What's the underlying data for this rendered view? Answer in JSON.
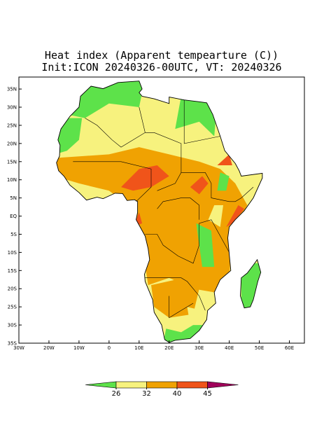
{
  "title": "Heat index (Apparent tempearture (C))",
  "subtitle": "Init:ICON 20240326-00UTC, VT: 20240326",
  "map": {
    "lon_range": [
      -30,
      65
    ],
    "lat_range": [
      -35,
      38.3
    ],
    "lat_ticks": [
      {
        "value": 35,
        "label": "35N"
      },
      {
        "value": 30,
        "label": "30N"
      },
      {
        "value": 25,
        "label": "25N"
      },
      {
        "value": 20,
        "label": "20N"
      },
      {
        "value": 15,
        "label": "15N"
      },
      {
        "value": 10,
        "label": "10N"
      },
      {
        "value": 5,
        "label": "5N"
      },
      {
        "value": 0,
        "label": "EQ"
      },
      {
        "value": -5,
        "label": "5S"
      },
      {
        "value": -10,
        "label": "10S"
      },
      {
        "value": -15,
        "label": "15S"
      },
      {
        "value": -20,
        "label": "20S"
      },
      {
        "value": -25,
        "label": "25S"
      },
      {
        "value": -30,
        "label": "30S"
      },
      {
        "value": -35,
        "label": "35S"
      }
    ],
    "lon_ticks": [
      {
        "value": -30,
        "label": "30W"
      },
      {
        "value": -20,
        "label": "20W"
      },
      {
        "value": -10,
        "label": "10W"
      },
      0,
      {
        "value": 10,
        "label": "10E"
      },
      {
        "value": 20,
        "label": "20E"
      },
      {
        "value": 30,
        "label": "30E"
      },
      {
        "value": 40,
        "label": "40E"
      },
      {
        "value": 50,
        "label": "50E"
      },
      {
        "value": 60,
        "label": "60E"
      }
    ]
  },
  "colorbar": {
    "levels": [
      26,
      32,
      40,
      45
    ],
    "colors": [
      "#5de24a",
      "#f7f27e",
      "#f0a202",
      "#f0541a",
      "#a0005a"
    ]
  }
}
